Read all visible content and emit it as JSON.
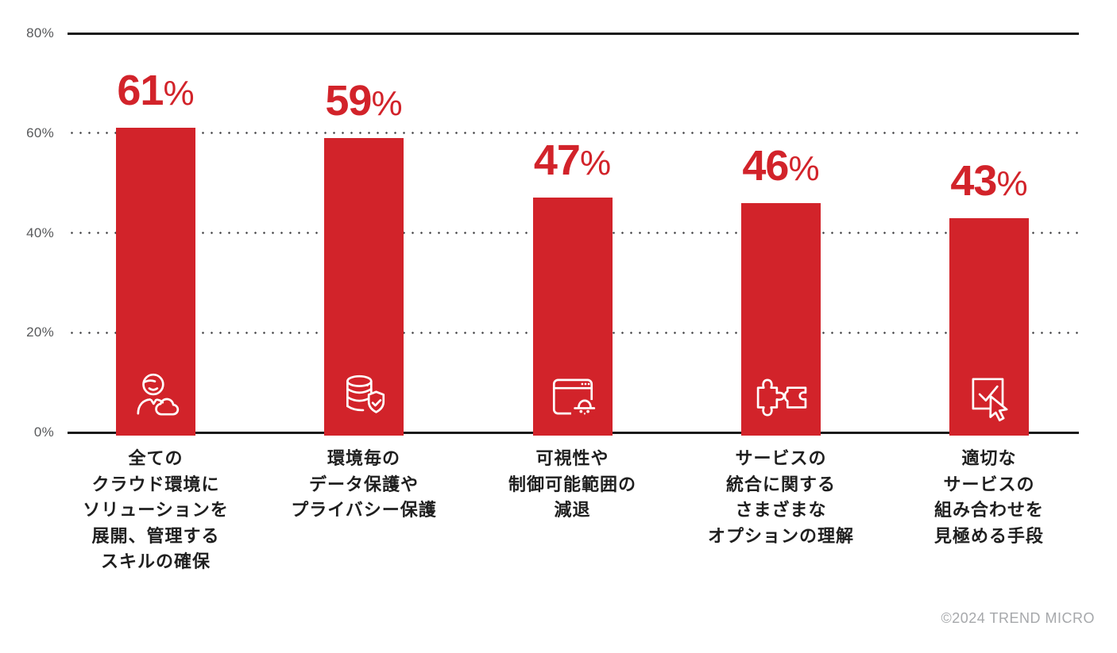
{
  "chart_data": {
    "type": "bar",
    "title": "",
    "xlabel": "",
    "ylabel": "",
    "ylim": [
      0,
      80
    ],
    "grid": "horizontal; solid lines at 0% and 80%, dotted lines at 20%, 40%, 60%",
    "legend": null,
    "categories": [
      "全ての\nクラウド環境に\nソリューションを\n展開、管理する\nスキルの確保",
      "環境毎の\nデータ保護や\nプライバシー保護",
      "可視性や\n制御可能範囲の\n減退",
      "サービスの\n統合に関する\nさまざまな\nオプションの理解",
      "適切な\nサービスの\n組み合わせを\n見極める手段"
    ],
    "values": [
      61,
      59,
      47,
      46,
      43
    ],
    "y_ticks": [
      {
        "value": 0,
        "label": "0%"
      },
      {
        "value": 20,
        "label": "20%"
      },
      {
        "value": 40,
        "label": "40%"
      },
      {
        "value": 60,
        "label": "60%"
      },
      {
        "value": 80,
        "label": "80%"
      }
    ],
    "bars": [
      {
        "value": 61,
        "label": "61%",
        "icon": "person-cloud-icon",
        "category_lines": [
          "全ての",
          "クラウド環境に",
          "ソリューションを",
          "展開、管理する",
          "スキルの確保"
        ]
      },
      {
        "value": 59,
        "label": "59%",
        "icon": "database-shield-icon",
        "category_lines": [
          "環境毎の",
          "データ保護や",
          "プライバシー保護"
        ]
      },
      {
        "value": 47,
        "label": "47%",
        "icon": "browser-incognito-icon",
        "category_lines": [
          "可視性や",
          "制御可能範囲の",
          "減退"
        ]
      },
      {
        "value": 46,
        "label": "46%",
        "icon": "puzzle-icon",
        "category_lines": [
          "サービスの",
          "統合に関する",
          "さまざまな",
          "オプションの理解"
        ]
      },
      {
        "value": 43,
        "label": "43%",
        "icon": "select-check-cursor-icon",
        "category_lines": [
          "適切な",
          "サービスの",
          "組み合わせを",
          "見極める手段"
        ]
      }
    ],
    "colors": {
      "bar": "#D2232A",
      "value_label": "#D2232A",
      "axis_line": "#1A1A1A",
      "grid_dot": "#4D4D4F",
      "tick_label": "#58595B",
      "category_label": "#1F1F1F",
      "icon_stroke": "#FFFFFF"
    }
  },
  "footer": {
    "copyright": "©2024 TREND MICRO"
  }
}
